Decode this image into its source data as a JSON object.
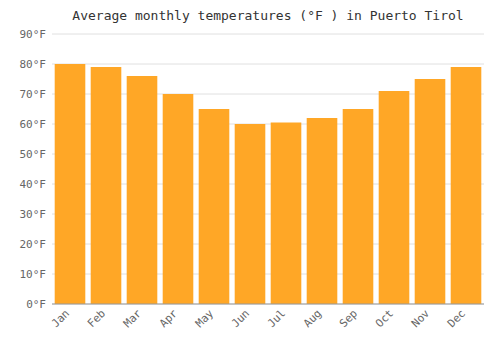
{
  "chart_data": {
    "type": "bar",
    "title": "Average monthly temperatures (°F ) in Puerto Tirol",
    "categories": [
      "Jan",
      "Feb",
      "Mar",
      "Apr",
      "May",
      "Jun",
      "Jul",
      "Aug",
      "Sep",
      "Oct",
      "Nov",
      "Dec"
    ],
    "values": [
      80,
      79,
      76,
      70,
      65,
      60,
      60.5,
      62,
      65,
      71,
      75,
      79
    ],
    "color": "#FFA726",
    "ylim": [
      0,
      90
    ],
    "yticks": [
      {
        "value": 0,
        "label": "0°F"
      },
      {
        "value": 10,
        "label": "10°F"
      },
      {
        "value": 20,
        "label": "20°F"
      },
      {
        "value": 30,
        "label": "30°F"
      },
      {
        "value": 40,
        "label": "40°F"
      },
      {
        "value": 50,
        "label": "50°F"
      },
      {
        "value": 60,
        "label": "60°F"
      },
      {
        "value": 70,
        "label": "70°F"
      },
      {
        "value": 80,
        "label": "80°F"
      },
      {
        "value": 90,
        "label": "90°F"
      }
    ],
    "grid": true
  }
}
